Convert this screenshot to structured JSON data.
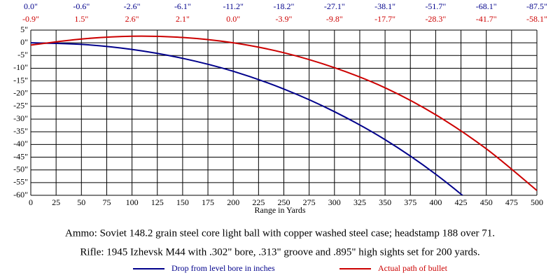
{
  "chart_data": {
    "type": "line",
    "x": [
      0,
      50,
      100,
      150,
      200,
      250,
      300,
      350,
      400,
      450,
      500
    ],
    "series": [
      {
        "name": "Drop from level bore in inches",
        "color": "#00008b",
        "values": [
          0.0,
          -0.6,
          -2.6,
          -6.1,
          -11.2,
          -18.2,
          -27.1,
          -38.1,
          -51.7,
          -68.1,
          -87.5
        ],
        "value_labels": [
          "0.0\"",
          "-0.6\"",
          "-2.6\"",
          "-6.1\"",
          "-11.2\"",
          "-18.2\"",
          "-27.1\"",
          "-38.1\"",
          "-51.7\"",
          "-68.1\"",
          "-87.5\""
        ]
      },
      {
        "name": "Actual path of bullet",
        "color": "#cc0000",
        "values": [
          -0.9,
          1.5,
          2.6,
          2.1,
          0.0,
          -3.9,
          -9.8,
          -17.7,
          -28.3,
          -41.7,
          -58.1
        ],
        "value_labels": [
          "-0.9\"",
          "1.5\"",
          "2.6\"",
          "2.1\"",
          "0.0\"",
          "-3.9\"",
          "-9.8\"",
          "-17.7\"",
          "-28.3\"",
          "-41.7\"",
          "-58.1\""
        ]
      }
    ],
    "x_label": "Range in Yards",
    "xlim": [
      0,
      500
    ],
    "xticks": [
      0,
      25,
      50,
      75,
      100,
      125,
      150,
      175,
      200,
      225,
      250,
      275,
      300,
      325,
      350,
      375,
      400,
      425,
      450,
      475,
      500
    ],
    "ylim": [
      -60,
      5
    ],
    "yticks": [
      {
        "value": 5,
        "label": "5\""
      },
      {
        "value": 0,
        "label": "0\""
      },
      {
        "value": -5,
        "label": "-5\""
      },
      {
        "value": -10,
        "label": "-10\""
      },
      {
        "value": -15,
        "label": "-15\""
      },
      {
        "value": -20,
        "label": "-20\""
      },
      {
        "value": -25,
        "label": "-25\""
      },
      {
        "value": -30,
        "label": "-30\""
      },
      {
        "value": -35,
        "label": "-35\""
      },
      {
        "value": -40,
        "label": "-40\""
      },
      {
        "value": -45,
        "label": "-45\""
      },
      {
        "value": -50,
        "label": "-50\""
      },
      {
        "value": -55,
        "label": "-55\""
      },
      {
        "value": -60,
        "label": "-60\""
      }
    ],
    "grid": true,
    "annotations": [
      "Ammo:  Soviet 148.2 grain steel core light ball with copper washed steel case; headstamp 188 over 71.",
      "Rifle:  1945 Izhevsk M44 with .302\" bore, .313\" groove and .895\" high sights set for 200 yards."
    ]
  }
}
